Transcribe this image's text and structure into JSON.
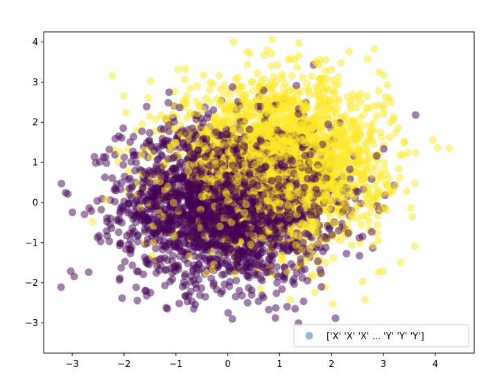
{
  "chart_data": {
    "type": "scatter",
    "title": "",
    "xlabel": "",
    "ylabel": "",
    "xlim": [
      -3.55,
      4.75
    ],
    "ylim": [
      -3.75,
      4.25
    ],
    "xticks": [
      -3,
      -2,
      -1,
      0,
      1,
      2,
      3,
      4
    ],
    "yticks": [
      -3,
      -2,
      -1,
      0,
      1,
      2,
      3,
      4
    ],
    "grid": false,
    "legend": {
      "placement": "lower-right",
      "entries": [
        "['X' 'X' 'X' ... 'Y' 'Y' 'Y']"
      ]
    },
    "series": [
      {
        "label": "X",
        "color": "#440154",
        "alpha": 0.5,
        "count": 2500,
        "center": [
          0.0,
          0.0
        ],
        "std": [
          1.0,
          1.0
        ]
      },
      {
        "label": "Y",
        "color": "#fde725",
        "alpha": 0.5,
        "count": 2500,
        "center": [
          1.0,
          1.0
        ],
        "std": [
          1.0,
          1.0
        ]
      }
    ],
    "legend_marker_color": "#1f77b4"
  }
}
